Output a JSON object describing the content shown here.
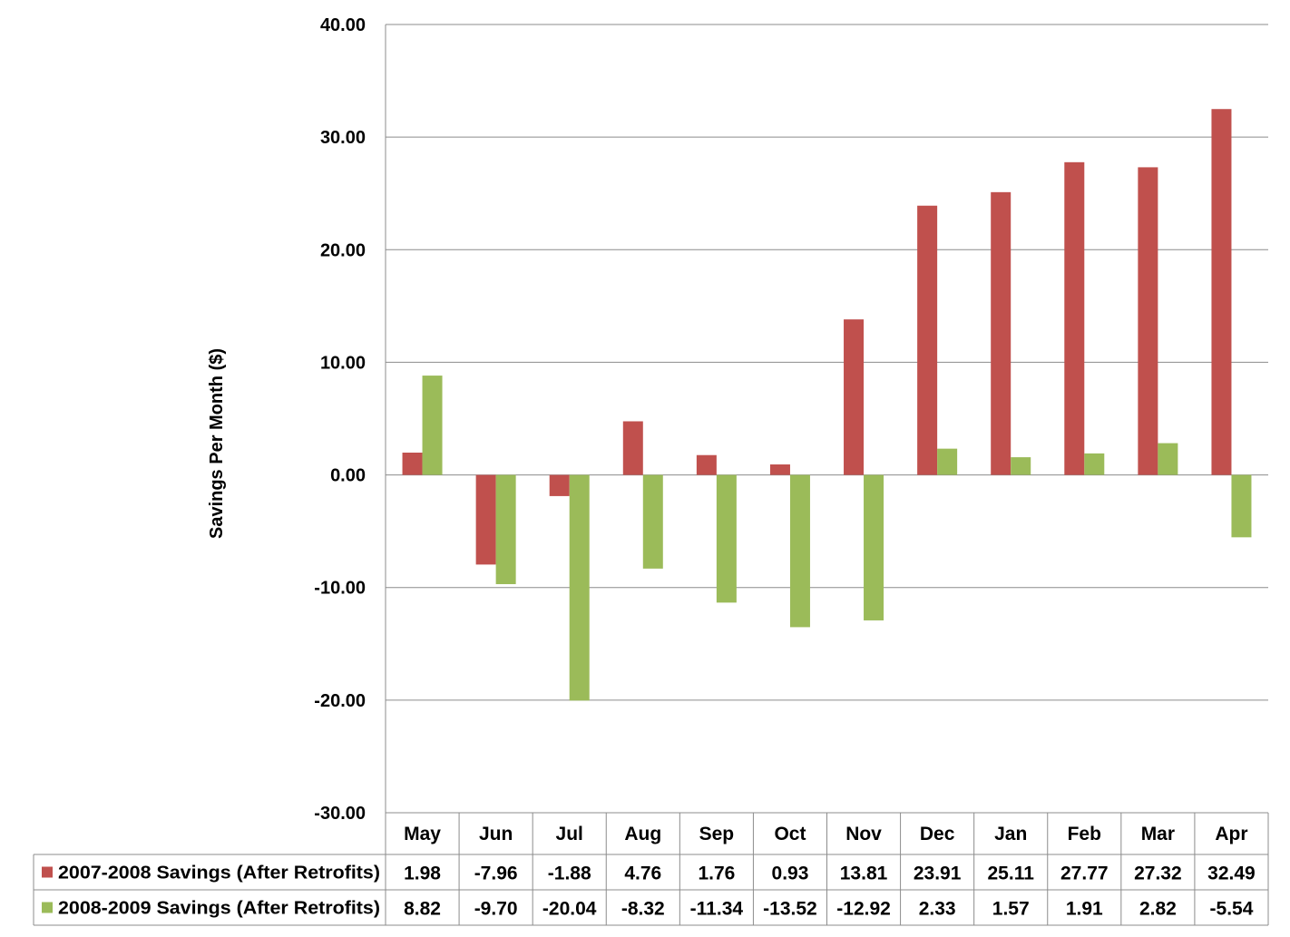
{
  "chart_data": {
    "type": "bar",
    "title": "",
    "xlabel": "",
    "ylabel": "Savings Per Month ($)",
    "ylim": [
      -30,
      40
    ],
    "yticks": [
      "40.00",
      "30.00",
      "20.00",
      "10.00",
      "0.00",
      "-10.00",
      "-20.00",
      "-30.00"
    ],
    "ytick_values": [
      40,
      30,
      20,
      10,
      0,
      -10,
      -20,
      -30
    ],
    "categories": [
      "May",
      "Jun",
      "Jul",
      "Aug",
      "Sep",
      "Oct",
      "Nov",
      "Dec",
      "Jan",
      "Feb",
      "Mar",
      "Apr"
    ],
    "series": [
      {
        "name": "2007-2008 Savings (After Retrofits)",
        "color": "#C0504D",
        "values": [
          1.98,
          -7.96,
          -1.88,
          4.76,
          1.76,
          0.93,
          13.81,
          23.91,
          25.11,
          27.77,
          27.32,
          32.49
        ],
        "labels": [
          "1.98",
          "-7.96",
          "-1.88",
          "4.76",
          "1.76",
          "0.93",
          "13.81",
          "23.91",
          "25.11",
          "27.77",
          "27.32",
          "32.49"
        ]
      },
      {
        "name": "2008-2009 Savings (After Retrofits)",
        "color": "#9BBB59",
        "values": [
          8.82,
          -9.7,
          -20.04,
          -8.32,
          -11.34,
          -13.52,
          -12.92,
          2.33,
          1.57,
          1.91,
          2.82,
          -5.54
        ],
        "labels": [
          "8.82",
          "-9.70",
          "-20.04",
          "-8.32",
          "-11.34",
          "-13.52",
          "-12.92",
          "2.33",
          "1.57",
          "1.91",
          "2.82",
          "-5.54"
        ]
      }
    ],
    "grid": true,
    "legend": "data-table-below"
  }
}
